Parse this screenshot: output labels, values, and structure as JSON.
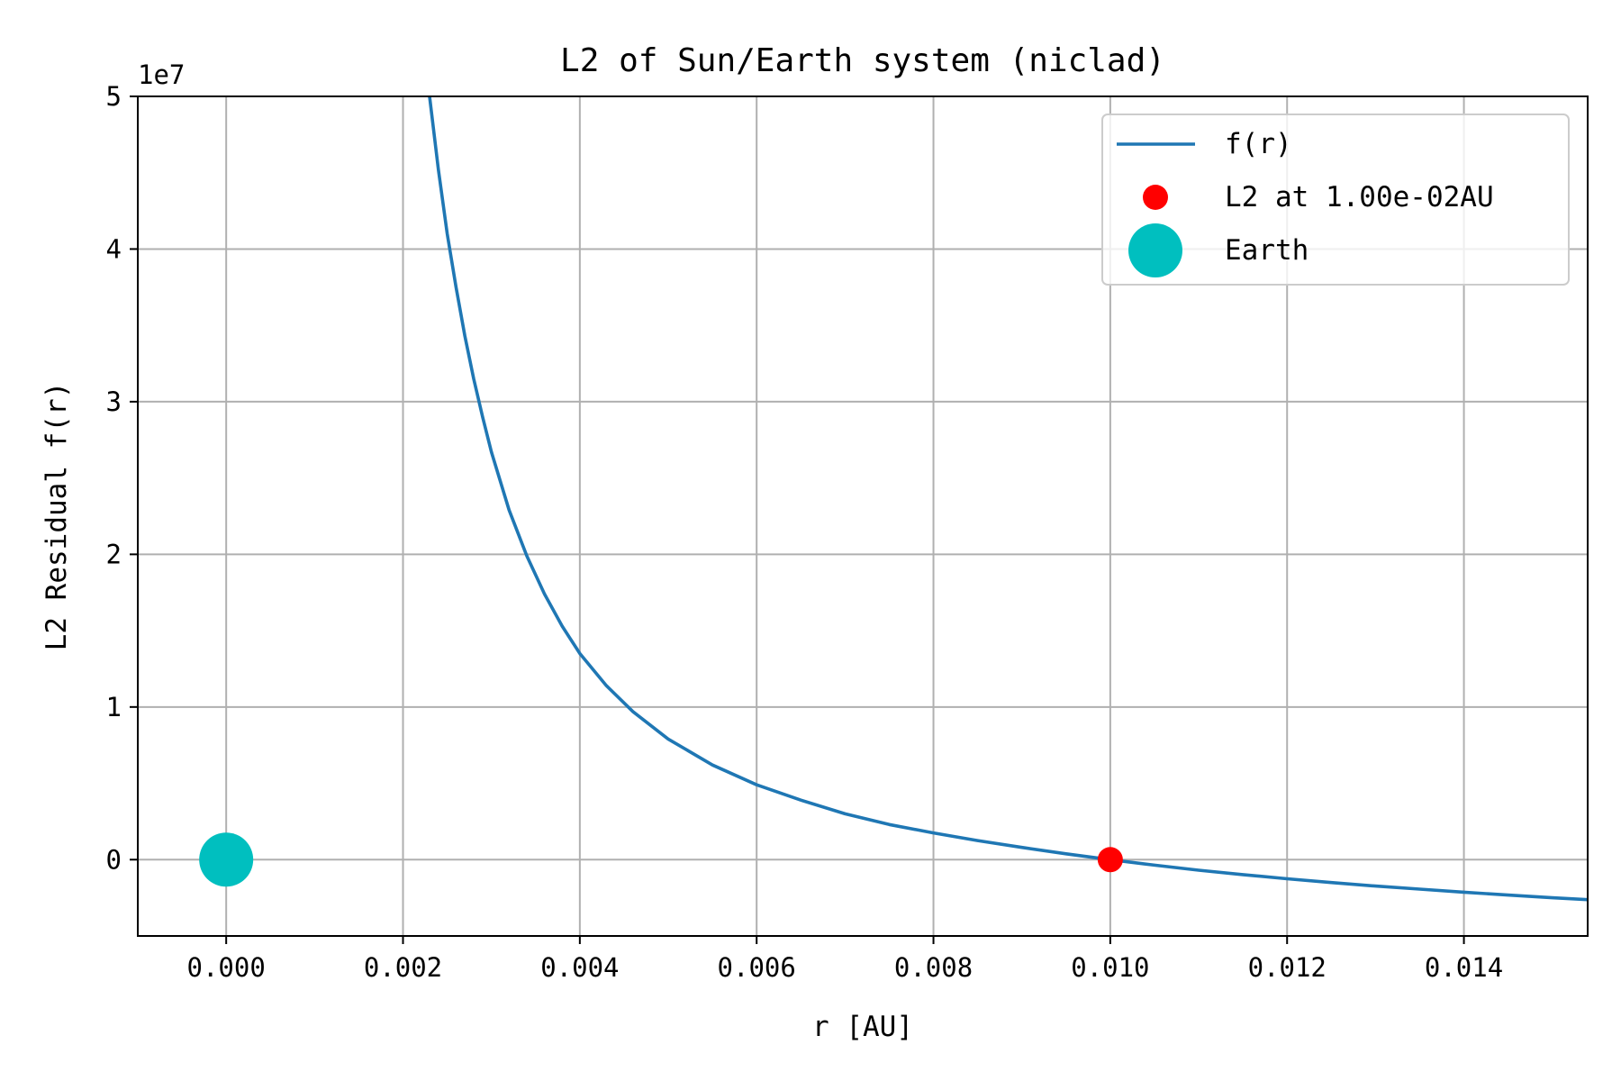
{
  "chart_data": {
    "type": "line",
    "title": "L2 of Sun/Earth system (niclad)",
    "xlabel": "r [AU]",
    "ylabel": "L2 Residual f(r)",
    "y_offset_label": "1e7",
    "xlim": [
      -0.001,
      0.0154
    ],
    "ylim": [
      -5000000,
      50000000
    ],
    "x_ticks": [
      0.0,
      0.002,
      0.004,
      0.006,
      0.008,
      0.01,
      0.012,
      0.014
    ],
    "x_tick_labels": [
      "0.000",
      "0.002",
      "0.004",
      "0.006",
      "0.008",
      "0.010",
      "0.012",
      "0.014"
    ],
    "y_ticks": [
      0,
      10000000,
      20000000,
      30000000,
      40000000,
      50000000
    ],
    "y_tick_labels": [
      "0",
      "1",
      "2",
      "3",
      "4",
      "5"
    ],
    "grid": true,
    "legend_position": "top-right",
    "series": [
      {
        "name": "f(r)",
        "kind": "line",
        "color": "#1f77b4",
        "x": [
          0.0023,
          0.0024,
          0.0025,
          0.0026,
          0.0027,
          0.0028,
          0.0029,
          0.003,
          0.0032,
          0.0034,
          0.0036,
          0.0038,
          0.004,
          0.0043,
          0.0046,
          0.005,
          0.0055,
          0.006,
          0.0065,
          0.007,
          0.0075,
          0.008,
          0.0085,
          0.009,
          0.0095,
          0.01,
          0.0105,
          0.011,
          0.0115,
          0.012,
          0.0125,
          0.013,
          0.0135,
          0.014,
          0.0145,
          0.015,
          0.0154
        ],
        "y": [
          50000000,
          45200000,
          41000000,
          37500000,
          34300000,
          31500000,
          29000000,
          26700000,
          22900000,
          19900000,
          17400000,
          15300000,
          13500000,
          11400000,
          9700000,
          7900000,
          6200000,
          4900000,
          3900000,
          3000000,
          2300000,
          1750000,
          1250000,
          800000,
          380000,
          0,
          -360000,
          -690000,
          -980000,
          -1250000,
          -1500000,
          -1730000,
          -1930000,
          -2130000,
          -2320000,
          -2500000,
          -2620000
        ]
      },
      {
        "name": "L2 at 1.00e-02AU",
        "kind": "point",
        "color": "#ff0000",
        "x": [
          0.01
        ],
        "y": [
          0
        ]
      },
      {
        "name": "Earth",
        "kind": "point",
        "color": "#00bfbf",
        "x": [
          0.0
        ],
        "y": [
          0
        ]
      }
    ]
  }
}
